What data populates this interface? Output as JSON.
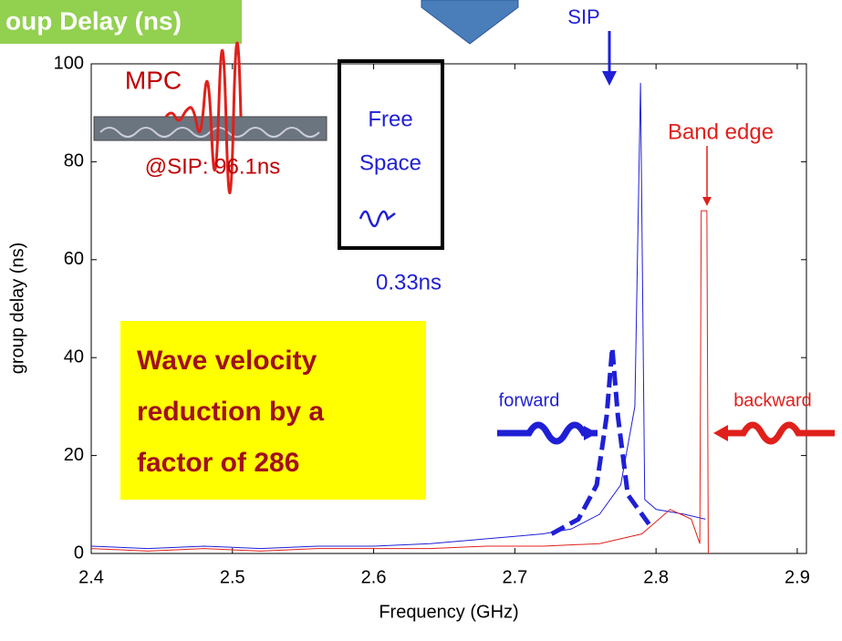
{
  "chart_data": {
    "type": "line",
    "title": "oup Delay (ns)",
    "xlabel": "Frequency (GHz)",
    "ylabel": "group delay (ns)",
    "xlim": [
      2.4,
      2.9065
    ],
    "ylim": [
      0,
      100
    ],
    "xticks": [
      2.4,
      2.5,
      2.6,
      2.7,
      2.8,
      2.9
    ],
    "yticks": [
      0,
      20,
      40,
      60,
      80,
      100
    ],
    "grid": false,
    "series": [
      {
        "color": "#1f1fd6",
        "style": "solid",
        "x": [
          2.4,
          2.44,
          2.48,
          2.52,
          2.56,
          2.6,
          2.64,
          2.68,
          2.7,
          2.72,
          2.74,
          2.76,
          2.775,
          2.785,
          2.789,
          2.792,
          2.8,
          2.82,
          2.835
        ],
        "values": [
          1.5,
          1,
          1.5,
          1,
          1.5,
          1.5,
          2,
          3,
          3.5,
          4,
          5,
          8,
          14,
          30,
          96.1,
          11,
          9,
          8,
          7
        ]
      },
      {
        "color": "#e0201b",
        "style": "solid",
        "x": [
          2.4,
          2.44,
          2.48,
          2.52,
          2.56,
          2.6,
          2.64,
          2.68,
          2.72,
          2.76,
          2.79,
          2.81,
          2.825,
          2.831,
          2.832,
          2.836,
          2.837
        ],
        "values": [
          1,
          0.5,
          1,
          0.5,
          1,
          1,
          1,
          1.5,
          1.5,
          2,
          4,
          9,
          7,
          2,
          70,
          70,
          0
        ]
      },
      {
        "color": "#1f1fd6",
        "style": "dashed",
        "x": [
          2.726,
          2.745,
          2.758,
          2.765,
          2.769,
          2.773,
          2.78,
          2.795
        ],
        "values": [
          4,
          7,
          14,
          28,
          42,
          28,
          12,
          6
        ]
      }
    ],
    "annotations": [
      "SIP",
      "MPC",
      "@SIP: 96.1ns",
      "Free",
      "Space",
      "0.33ns",
      "Band edge",
      "forward",
      "backward"
    ],
    "callout": [
      "Wave velocity",
      "reduction by a",
      "factor of  286"
    ]
  }
}
